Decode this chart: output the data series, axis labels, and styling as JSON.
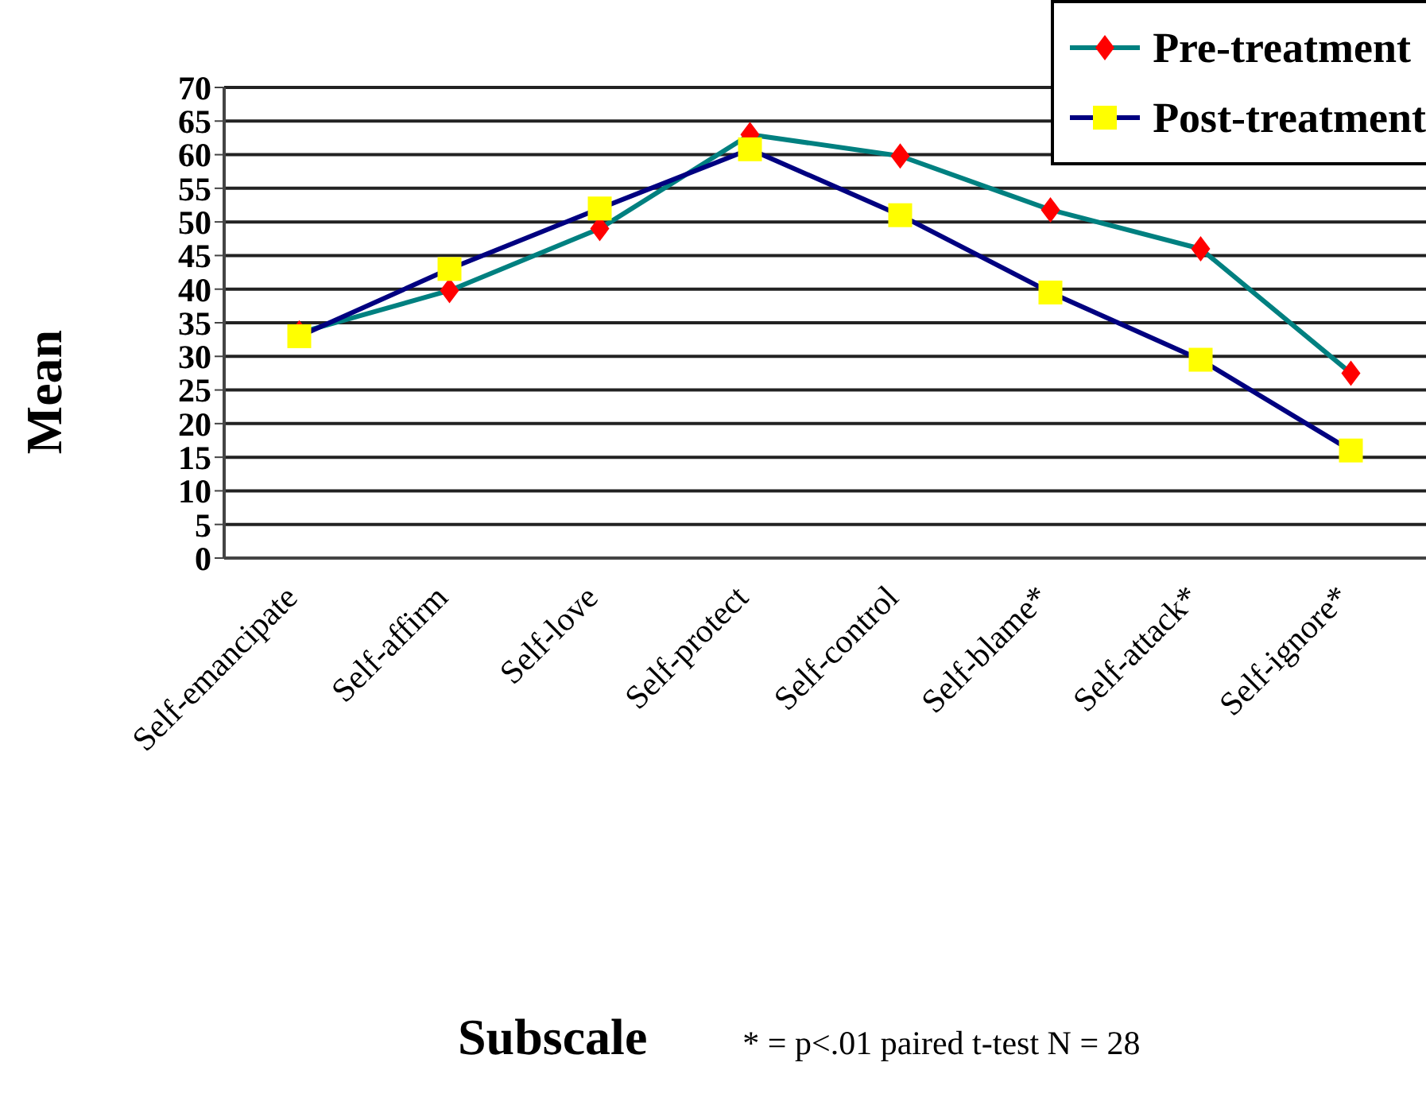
{
  "chart_data": {
    "type": "line",
    "xlabel": "Subscale",
    "ylabel": "Mean",
    "annotations": [
      "* = p<.01 paired t-test   N = 28"
    ],
    "categories": [
      "Self-emancipate",
      "Self-affirm",
      "Self-love",
      "Self-protect",
      "Self-control",
      "Self-blame*",
      "Self-attack*",
      "Self-ignore*"
    ],
    "series": [
      {
        "name": "Pre-treatment",
        "color": "#008080",
        "colors": [
          "#ff0000",
          "#ff0000",
          "#ff0000",
          "#ff0000",
          "#ff0000",
          "#ff0000",
          "#ff0000",
          "#ff0000"
        ],
        "marker": "diamond",
        "values": [
          33.5,
          39.8,
          49,
          63,
          59.8,
          51.8,
          46,
          27.5
        ]
      },
      {
        "name": "Post-treatment",
        "color": "#000080",
        "colors": [
          "#ffff00",
          "#ffff00",
          "#ffff00",
          "#ffff00",
          "#ffff00",
          "#ffff00",
          "#ffff00",
          "#ffff00"
        ],
        "marker": "square",
        "values": [
          33,
          43,
          52,
          60.8,
          51,
          39.5,
          29.5,
          16
        ]
      }
    ],
    "ylim": [
      0,
      70
    ],
    "yticks": [
      0,
      5,
      10,
      15,
      20,
      25,
      30,
      35,
      40,
      45,
      50,
      55,
      60,
      65,
      70
    ],
    "grid": "y",
    "legend": "top right",
    "line_style": "solid"
  }
}
